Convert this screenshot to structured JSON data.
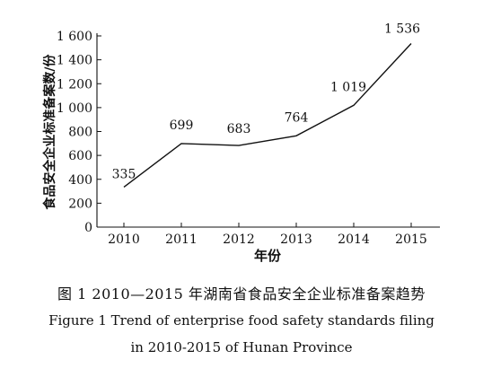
{
  "chart_data": {
    "type": "line",
    "x": [
      "2010",
      "2011",
      "2012",
      "2013",
      "2014",
      "2015"
    ],
    "values": [
      335,
      699,
      683,
      764,
      1019,
      1536
    ],
    "data_labels": [
      "335",
      "699",
      "683",
      "764",
      "1 019",
      "1 536"
    ],
    "y_ticks": [
      0,
      200,
      400,
      600,
      800,
      1000,
      1200,
      1400,
      1600
    ],
    "y_tick_labels": [
      "0",
      "200",
      "400",
      "600",
      "800",
      "1 000",
      "1 200",
      "1 400",
      "1 600"
    ],
    "ylim": [
      0,
      1600
    ],
    "xlabel": "年份",
    "ylabel": "食品安全企业标准备案数/份",
    "grid": false,
    "line_color": "#111111"
  },
  "caption": {
    "cn": "图 1    2010—2015 年湖南省食品安全企业标准备案趋势",
    "en_line1": "Figure 1    Trend of enterprise food safety standards filing",
    "en_line2": "in 2010-2015 of Hunan Province"
  }
}
